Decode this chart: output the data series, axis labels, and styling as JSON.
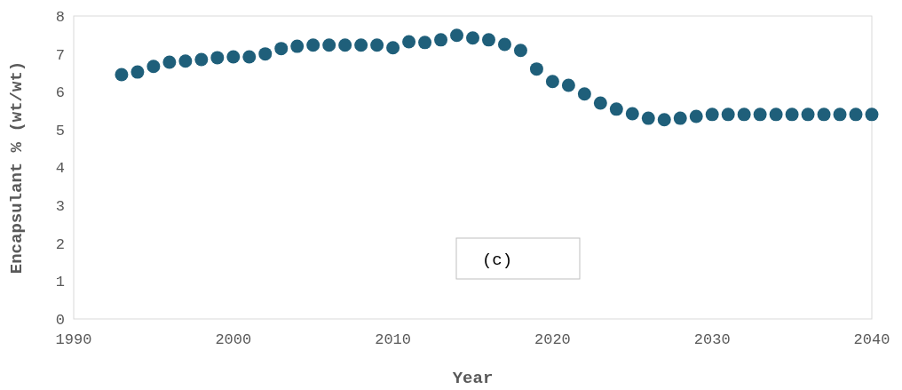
{
  "chart_data": {
    "type": "scatter",
    "xlabel": "Year",
    "ylabel": "Encapsulant % (wt/wt)",
    "annotations": [
      "(c)"
    ],
    "x": [
      1993,
      1994,
      1995,
      1996,
      1997,
      1998,
      1999,
      2000,
      2001,
      2002,
      2003,
      2004,
      2005,
      2006,
      2007,
      2008,
      2009,
      2010,
      2011,
      2012,
      2013,
      2014,
      2015,
      2016,
      2017,
      2018,
      2019,
      2020,
      2021,
      2022,
      2023,
      2024,
      2025,
      2026,
      2027,
      2028,
      2029,
      2030,
      2031,
      2032,
      2033,
      2034,
      2035,
      2036,
      2037,
      2038,
      2039,
      2040
    ],
    "series": [
      {
        "color": "#1f5f7a",
        "values": [
          6.45,
          6.52,
          6.67,
          6.78,
          6.81,
          6.85,
          6.9,
          6.92,
          6.92,
          7.0,
          7.14,
          7.2,
          7.23,
          7.23,
          7.23,
          7.23,
          7.23,
          7.16,
          7.32,
          7.3,
          7.37,
          7.49,
          7.42,
          7.37,
          7.25,
          7.09,
          6.6,
          6.27,
          6.17,
          5.94,
          5.7,
          5.54,
          5.42,
          5.3,
          5.26,
          5.3,
          5.35,
          5.4,
          5.4,
          5.4,
          5.4,
          5.4,
          5.4,
          5.4,
          5.4,
          5.4,
          5.4,
          5.4
        ]
      }
    ],
    "xlim": [
      1990,
      2040
    ],
    "xticks": [
      1990,
      2000,
      2010,
      2020,
      2030,
      2040
    ],
    "ylim": [
      0,
      8
    ],
    "yticks": [
      0,
      1,
      2,
      3,
      4,
      5,
      6,
      7,
      8
    ],
    "marker": "circle",
    "grid": false
  }
}
